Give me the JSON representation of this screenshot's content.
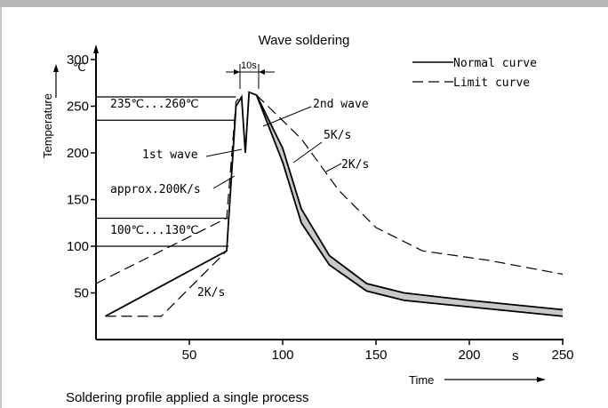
{
  "chart_data": {
    "type": "line",
    "title": "Wave soldering",
    "caption": "Soldering profile applied a single process",
    "xlabel": "Time",
    "x_unit": "s",
    "ylabel": "Temperature",
    "y_unit": "℃",
    "xlim": [
      0,
      250
    ],
    "ylim": [
      0,
      300
    ],
    "x_ticks": [
      50,
      100,
      150,
      200,
      250
    ],
    "y_ticks": [
      50,
      100,
      150,
      200,
      250,
      300
    ],
    "legend": [
      {
        "name": "Normal curve",
        "style": "solid"
      },
      {
        "name": "Limit curve",
        "style": "dashed"
      }
    ],
    "series": [
      {
        "name": "Normal curve",
        "style": "solid",
        "points": [
          [
            5,
            25
          ],
          [
            70,
            95
          ],
          [
            75,
            250
          ],
          [
            78,
            260
          ],
          [
            80,
            200
          ],
          [
            82,
            265
          ],
          [
            86,
            262
          ],
          [
            100,
            190
          ],
          [
            110,
            125
          ],
          [
            125,
            80
          ],
          [
            145,
            52
          ],
          [
            165,
            42
          ],
          [
            200,
            35
          ],
          [
            250,
            25
          ]
        ]
      },
      {
        "name": "Normal curve",
        "style": "solid",
        "points": [
          [
            86,
            262
          ],
          [
            100,
            205
          ],
          [
            110,
            140
          ],
          [
            125,
            90
          ],
          [
            145,
            60
          ],
          [
            165,
            50
          ],
          [
            200,
            42
          ],
          [
            250,
            32
          ]
        ]
      },
      {
        "name": "Limit curve",
        "style": "dashed",
        "points": [
          [
            0,
            60
          ],
          [
            70,
            130
          ],
          [
            75,
            255
          ],
          [
            78,
            262
          ]
        ]
      },
      {
        "name": "Limit curve",
        "style": "dashed",
        "points": [
          [
            5,
            25
          ],
          [
            35,
            25
          ],
          [
            70,
            95
          ]
        ]
      },
      {
        "name": "Limit curve",
        "style": "dashed",
        "points": [
          [
            86,
            262
          ],
          [
            110,
            215
          ],
          [
            130,
            160
          ],
          [
            150,
            120
          ],
          [
            175,
            95
          ],
          [
            210,
            85
          ],
          [
            250,
            70
          ]
        ]
      }
    ],
    "hlines": [
      260,
      235,
      130,
      100
    ],
    "annotations": {
      "range_high": "235℃...260℃",
      "range_low": "100℃...130℃",
      "first_wave": "1st wave",
      "second_wave": "2nd wave",
      "rate_200": "approx.200K/s",
      "rate_5": "5K/s",
      "rate_2_top": "2K/s",
      "rate_2_bottom": "2K/s",
      "duration": "10s"
    }
  }
}
